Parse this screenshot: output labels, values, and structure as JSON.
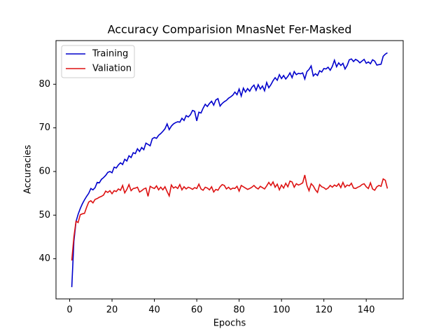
{
  "chart_data": {
    "type": "line",
    "title": "Accuracy Comparision MnasNet Fer-Masked",
    "xlabel": "Epochs",
    "ylabel": "Accuracies",
    "x": [
      1,
      2,
      3,
      4,
      5,
      6,
      7,
      8,
      9,
      10,
      11,
      12,
      13,
      14,
      15,
      16,
      17,
      18,
      19,
      20,
      21,
      22,
      23,
      24,
      25,
      26,
      27,
      28,
      29,
      30,
      31,
      32,
      33,
      34,
      35,
      36,
      37,
      38,
      39,
      40,
      41,
      42,
      43,
      44,
      45,
      46,
      47,
      48,
      49,
      50,
      51,
      52,
      53,
      54,
      55,
      56,
      57,
      58,
      59,
      60,
      61,
      62,
      63,
      64,
      65,
      66,
      67,
      68,
      69,
      70,
      71,
      72,
      73,
      74,
      75,
      76,
      77,
      78,
      79,
      80,
      81,
      82,
      83,
      84,
      85,
      86,
      87,
      88,
      89,
      90,
      91,
      92,
      93,
      94,
      95,
      96,
      97,
      98,
      99,
      100,
      101,
      102,
      103,
      104,
      105,
      106,
      107,
      108,
      109,
      110,
      111,
      112,
      113,
      114,
      115,
      116,
      117,
      118,
      119,
      120,
      121,
      122,
      123,
      124,
      125,
      126,
      127,
      128,
      129,
      130,
      131,
      132,
      133,
      134,
      135,
      136,
      137,
      138,
      139,
      140,
      141,
      142,
      143,
      144,
      145,
      146,
      147,
      148,
      149,
      150
    ],
    "series": [
      {
        "name": "Training",
        "color": "#0000cc",
        "values": [
          33.5,
          44.0,
          48.5,
          50.2,
          51.5,
          52.6,
          53.5,
          54.3,
          55.0,
          56.1,
          55.8,
          56.3,
          57.5,
          57.4,
          58.2,
          58.6,
          59.1,
          59.8,
          60.0,
          59.7,
          61.0,
          60.8,
          61.5,
          62.0,
          61.6,
          62.8,
          62.4,
          63.6,
          63.2,
          64.3,
          64.1,
          65.2,
          64.6,
          65.5,
          65.0,
          66.5,
          66.2,
          65.9,
          67.5,
          67.8,
          67.6,
          68.3,
          68.7,
          69.2,
          69.8,
          70.9,
          69.6,
          70.4,
          70.9,
          71.2,
          71.4,
          71.3,
          72.2,
          71.7,
          72.8,
          72.5,
          73.0,
          74.0,
          73.8,
          71.6,
          73.6,
          73.4,
          74.5,
          75.4,
          74.9,
          75.6,
          76.1,
          75.2,
          76.4,
          76.7,
          75.0,
          75.6,
          76.0,
          76.3,
          76.8,
          77.1,
          77.5,
          78.2,
          77.6,
          78.9,
          77.3,
          79.1,
          78.2,
          79.0,
          78.4,
          79.3,
          79.8,
          78.6,
          79.9,
          78.9,
          79.6,
          78.5,
          80.4,
          79.2,
          79.9,
          80.8,
          81.5,
          80.9,
          82.2,
          81.3,
          82.0,
          81.2,
          81.8,
          82.6,
          81.5,
          82.9,
          82.2,
          82.5,
          82.4,
          82.6,
          81.2,
          82.9,
          83.4,
          84.2,
          81.9,
          82.4,
          82.0,
          83.1,
          82.8,
          83.6,
          83.5,
          83.9,
          83.2,
          84.1,
          85.5,
          84.0,
          84.9,
          84.3,
          84.8,
          83.5,
          84.3,
          85.6,
          85.8,
          85.2,
          85.7,
          85.4,
          84.9,
          85.3,
          85.7,
          84.8,
          85.1,
          84.7,
          85.6,
          85.3,
          84.4,
          84.5,
          84.6,
          86.4,
          86.9,
          87.2
        ]
      },
      {
        "name": "Valiation",
        "color": "#dd1111",
        "values": [
          39.6,
          45.0,
          48.6,
          48.3,
          50.1,
          50.3,
          50.4,
          51.8,
          53.0,
          53.3,
          52.8,
          53.6,
          53.8,
          54.1,
          54.3,
          54.6,
          55.5,
          55.2,
          55.6,
          54.9,
          55.6,
          55.4,
          56.0,
          55.7,
          56.8,
          55.1,
          55.9,
          57.0,
          55.6,
          56.1,
          56.2,
          56.4,
          55.3,
          55.6,
          56.0,
          56.2,
          54.3,
          56.6,
          56.3,
          56.1,
          56.7,
          55.8,
          56.4,
          55.8,
          56.5,
          55.4,
          54.4,
          56.9,
          56.2,
          56.5,
          56.1,
          57.0,
          55.8,
          56.5,
          56.0,
          56.4,
          56.2,
          55.9,
          56.3,
          56.1,
          57.1,
          56.0,
          55.7,
          56.4,
          56.2,
          55.8,
          56.5,
          55.3,
          55.9,
          55.7,
          56.5,
          57.0,
          56.8,
          56.0,
          56.4,
          55.9,
          56.2,
          56.1,
          56.6,
          55.5,
          56.8,
          56.5,
          56.2,
          55.9,
          56.1,
          56.4,
          56.8,
          56.3,
          56.0,
          56.6,
          56.3,
          56.0,
          56.7,
          57.5,
          56.8,
          57.6,
          56.4,
          57.1,
          55.8,
          56.9,
          56.2,
          57.3,
          56.5,
          57.8,
          57.6,
          56.4,
          57.2,
          56.9,
          57.1,
          57.4,
          59.2,
          56.8,
          55.6,
          57.2,
          56.7,
          55.8,
          55.2,
          57.0,
          56.5,
          56.3,
          55.9,
          56.2,
          56.8,
          56.4,
          56.9,
          56.6,
          57.2,
          56.3,
          57.5,
          56.4,
          56.9,
          56.7,
          57.3,
          56.2,
          56.1,
          56.4,
          56.6,
          57.0,
          57.2,
          56.5,
          56.1,
          57.4,
          56.0,
          55.7,
          56.5,
          56.8,
          56.6,
          58.3,
          58.0,
          56.1
        ]
      }
    ],
    "xlim": [
      -6.45,
      157.45
    ],
    "xticks": [
      0,
      20,
      40,
      60,
      80,
      100,
      120,
      140
    ],
    "ylim": [
      30.8,
      90.0
    ],
    "yticks": [
      40,
      50,
      60,
      70,
      80
    ],
    "legend": "upper left"
  }
}
